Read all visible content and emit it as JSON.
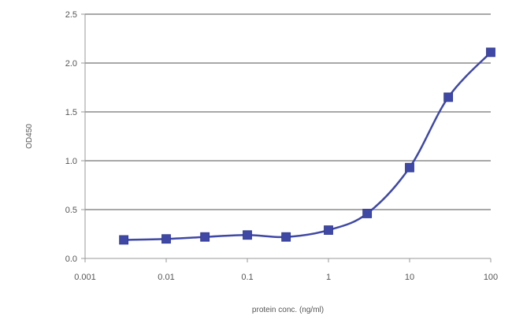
{
  "chart_data": {
    "type": "line",
    "title": "",
    "xlabel": "protein conc. (ng/ml)",
    "ylabel": "OD450",
    "x_scale": "log",
    "xlim": [
      0.001,
      100
    ],
    "ylim": [
      0,
      2.5
    ],
    "x_ticks": [
      0.001,
      0.01,
      0.1,
      1,
      10,
      100
    ],
    "x_tick_labels": [
      "0.001",
      "0.01",
      "0.1",
      "1",
      "10",
      "100"
    ],
    "y_ticks": [
      0,
      0.5,
      1,
      1.5,
      2,
      2.5
    ],
    "y_tick_labels": [
      "0.0",
      "0.5",
      "1.0",
      "1.5",
      "2.0",
      "2.5"
    ],
    "grid": "horizontal",
    "legend": "none",
    "series": [
      {
        "color": "#3f48a5",
        "marker": "square",
        "x": [
          0.003,
          0.01,
          0.03,
          0.1,
          0.3,
          1,
          3,
          10,
          30,
          100
        ],
        "y": [
          0.19,
          0.2,
          0.22,
          0.24,
          0.22,
          0.29,
          0.46,
          0.93,
          1.65,
          2.11
        ]
      }
    ]
  }
}
